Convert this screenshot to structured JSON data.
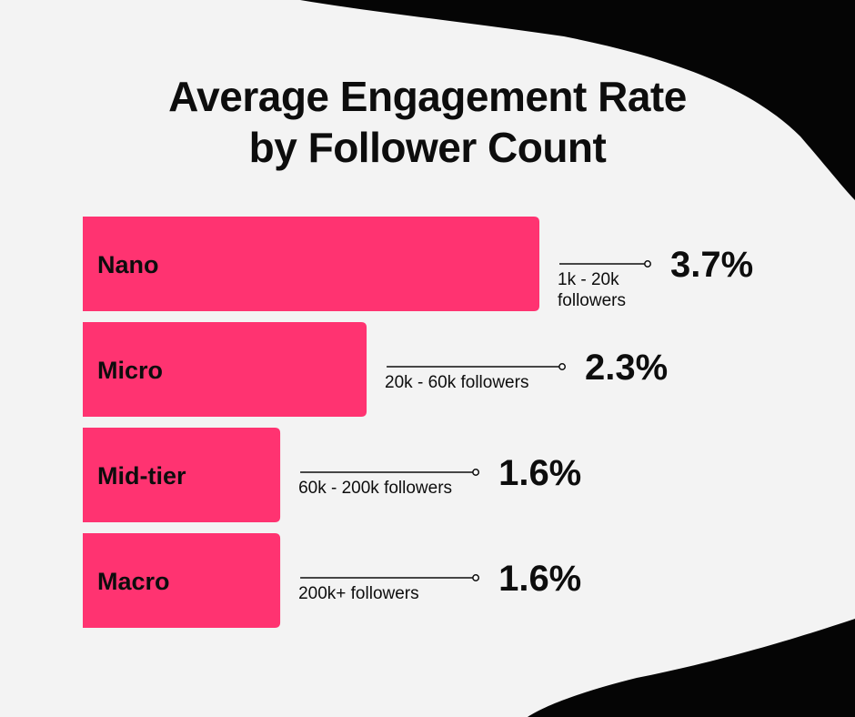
{
  "title_lines": [
    "Average Engagement Rate",
    "by Follower Count"
  ],
  "colors": {
    "bar": "#ff3371",
    "text": "#0d0d0d",
    "background": "#f3f3f3",
    "blob": "#050505"
  },
  "chart_data": {
    "type": "bar",
    "orientation": "horizontal",
    "title": "Average Engagement Rate by Follower Count",
    "categories": [
      "Nano",
      "Micro",
      "Mid-tier",
      "Macro"
    ],
    "values": [
      3.7,
      2.3,
      1.6,
      1.6
    ],
    "value_labels": [
      "3.7%",
      "2.3%",
      "1.6%",
      "1.6%"
    ],
    "sublabels": [
      [
        "1k - 20k",
        "followers"
      ],
      [
        "20k - 60k followers"
      ],
      [
        "60k - 200k followers"
      ],
      [
        "200k+ followers"
      ]
    ],
    "unit": "%",
    "grid": false,
    "legend": "none"
  }
}
